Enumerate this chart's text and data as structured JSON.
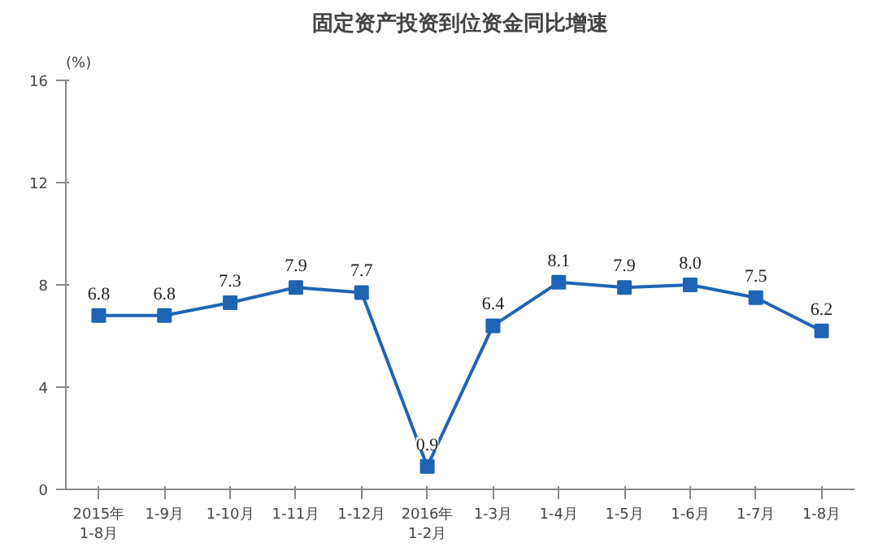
{
  "chart_data": {
    "type": "line",
    "title": "固定资产投资到位资金同比增速",
    "ylabel": "(%)",
    "categories": [
      "2015年\n1-8月",
      "1-9月",
      "1-10月",
      "1-11月",
      "1-12月",
      "2016年\n1-2月",
      "1-3月",
      "1-4月",
      "1-5月",
      "1-6月",
      "1-7月",
      "1-8月"
    ],
    "series": [
      {
        "color": "#1f64b4",
        "values": [
          6.8,
          6.8,
          7.3,
          7.9,
          7.7,
          0.9,
          6.4,
          8.1,
          7.9,
          8.0,
          7.5,
          6.2
        ],
        "value_labels": [
          "6.8",
          "6.8",
          "7.3",
          "7.9",
          "7.7",
          "0.9",
          "6.4",
          "8.1",
          "7.9",
          "8.0",
          "7.5",
          "6.2"
        ]
      }
    ],
    "ylim": [
      0,
      16
    ],
    "yticks": [
      0,
      4,
      8,
      12,
      16
    ],
    "grid": false,
    "marker": "square",
    "line_style": "solid"
  }
}
